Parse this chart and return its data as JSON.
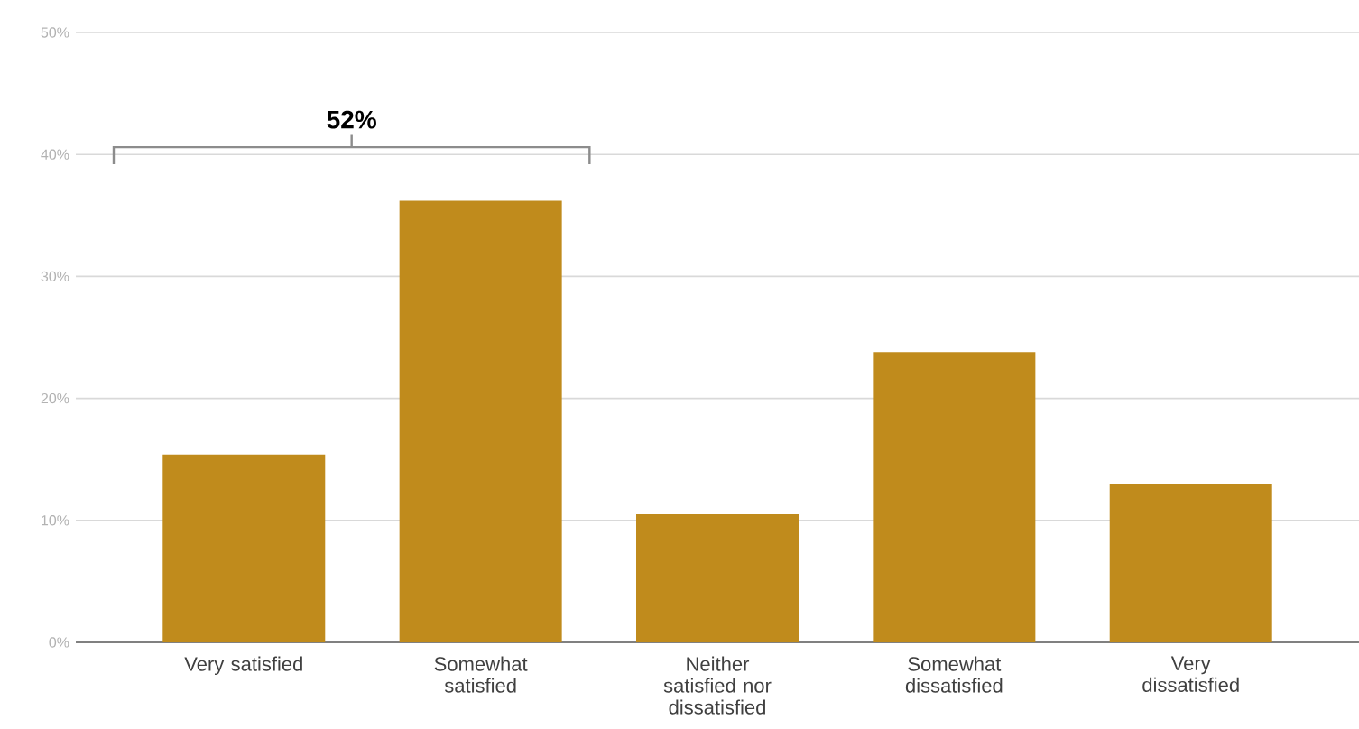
{
  "chart_data": {
    "type": "bar",
    "categories": [
      "Very satisfied",
      "Somewhat satisfied",
      "Neither satisfied nor dissatisfied",
      "Somewhat dissatisfied",
      "Very dissatisfied"
    ],
    "values": [
      15.4,
      36.2,
      10.5,
      23.8,
      13.0
    ],
    "color": "#c08b1c",
    "ylim": [
      0,
      50
    ],
    "yticks": [
      {
        "value": 0,
        "label": "0%"
      },
      {
        "value": 10,
        "label": "10%"
      },
      {
        "value": 20,
        "label": "20%"
      },
      {
        "value": 30,
        "label": "30%"
      },
      {
        "value": 40,
        "label": "40%"
      },
      {
        "value": 50,
        "label": "50%"
      }
    ],
    "grid": "y",
    "annotations": [
      "52%"
    ]
  }
}
